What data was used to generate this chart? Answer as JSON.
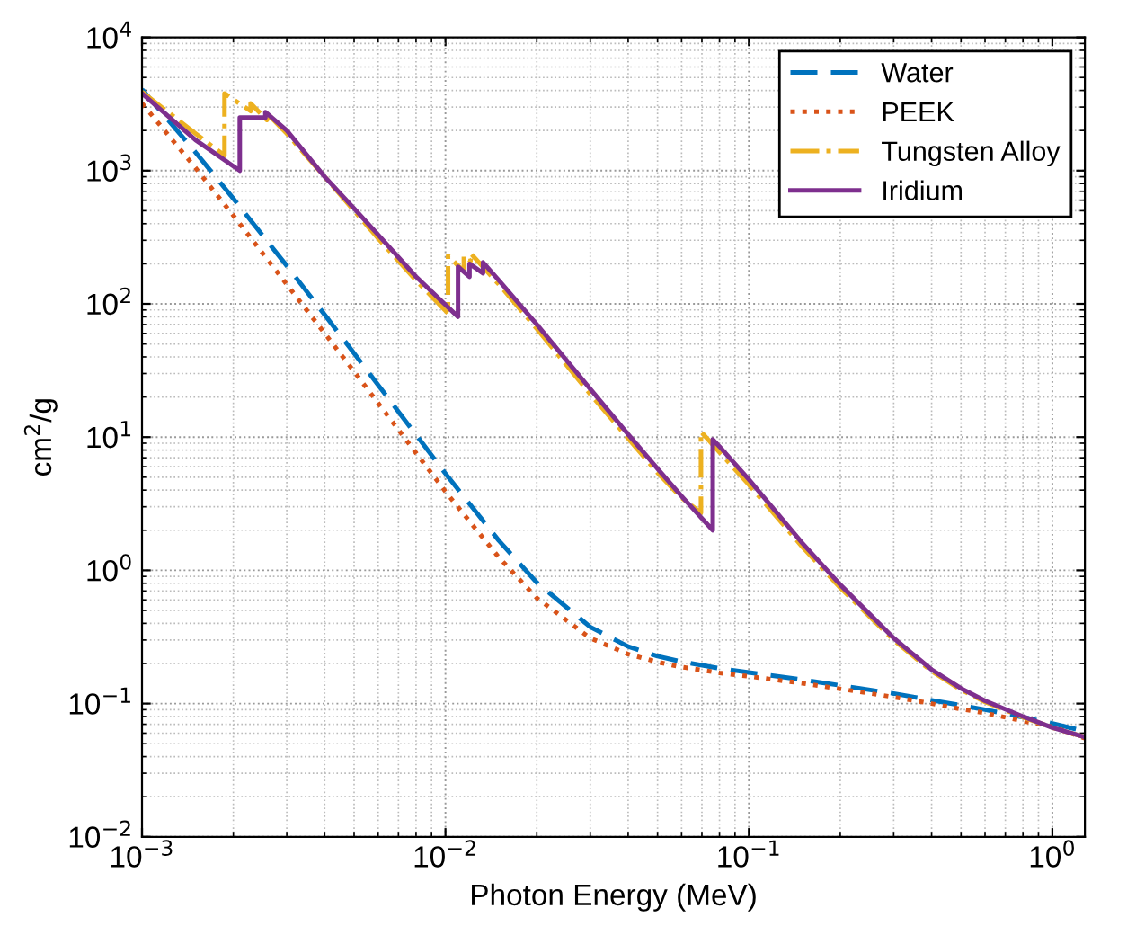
{
  "chart_data": {
    "type": "line",
    "xlabel": "Photon Energy (MeV)",
    "ylabel": "cm$^{2}$/g",
    "log": "xy",
    "grid": true,
    "legend": "top right",
    "xlim": [
      0.001,
      1.28
    ],
    "ylim": [
      0.01,
      10000
    ],
    "xticks": [
      {
        "value": 0.001,
        "label": "10$^{−3}$"
      },
      {
        "value": 0.01,
        "label": "10$^{−2}$"
      },
      {
        "value": 0.1,
        "label": "10$^{−1}$"
      },
      {
        "value": 1,
        "label": "10$^{0}$"
      }
    ],
    "yticks": [
      {
        "value": 0.01,
        "label": "10$^{−2}$"
      },
      {
        "value": 0.1,
        "label": "10$^{−1}$"
      },
      {
        "value": 1,
        "label": "10$^{0}$"
      },
      {
        "value": 10,
        "label": "10$^{1}$"
      },
      {
        "value": 100,
        "label": "10$^{2}$"
      },
      {
        "value": 1000,
        "label": "10$^{3}$"
      },
      {
        "value": 10000,
        "label": "10$^{4}$"
      }
    ],
    "series": [
      {
        "name": "Water",
        "color": "#0072bd",
        "line_style": "dashed",
        "x": [
          0.001,
          0.0015,
          0.002,
          0.003,
          0.004,
          0.005,
          0.006,
          0.008,
          0.01,
          0.015,
          0.02,
          0.03,
          0.04,
          0.05,
          0.06,
          0.08,
          0.1,
          0.15,
          0.2,
          0.3,
          0.4,
          0.5,
          0.6,
          0.8,
          1.0,
          1.28
        ],
        "values": [
          4078,
          1376,
          617,
          193,
          82.8,
          42.6,
          24.6,
          10.4,
          5.33,
          1.67,
          0.81,
          0.376,
          0.268,
          0.227,
          0.206,
          0.184,
          0.171,
          0.151,
          0.137,
          0.119,
          0.106,
          0.097,
          0.09,
          0.079,
          0.071,
          0.062
        ]
      },
      {
        "name": "PEEK",
        "color": "#d95319",
        "line_style": "dotted",
        "x": [
          0.001,
          0.0015,
          0.002,
          0.003,
          0.004,
          0.005,
          0.006,
          0.008,
          0.01,
          0.015,
          0.02,
          0.03,
          0.04,
          0.05,
          0.06,
          0.08,
          0.1,
          0.15,
          0.2,
          0.3,
          0.4,
          0.5,
          0.6,
          0.8,
          1.0,
          1.28
        ],
        "values": [
          3200,
          1050,
          460,
          140,
          60,
          31,
          18,
          7.6,
          3.9,
          1.25,
          0.62,
          0.31,
          0.235,
          0.205,
          0.188,
          0.17,
          0.16,
          0.142,
          0.129,
          0.112,
          0.1,
          0.091,
          0.085,
          0.074,
          0.067,
          0.055
        ]
      },
      {
        "name": "Tungsten Alloy",
        "color": "#edb120",
        "line_style": "dashdot",
        "x": [
          0.001,
          0.0015,
          0.00187,
          0.00187,
          0.00228,
          0.00228,
          0.00258,
          0.00258,
          0.003,
          0.004,
          0.005,
          0.006,
          0.008,
          0.0102,
          0.0102,
          0.0115,
          0.0115,
          0.0121,
          0.0121,
          0.015,
          0.02,
          0.03,
          0.04,
          0.05,
          0.06,
          0.0695,
          0.0695,
          0.08,
          0.1,
          0.15,
          0.2,
          0.3,
          0.4,
          0.5,
          0.6,
          0.8,
          1.0,
          1.28
        ],
        "values": [
          3900,
          1900,
          1300,
          3800,
          2800,
          3200,
          2400,
          2700,
          1900,
          900,
          500,
          310,
          150,
          85,
          230,
          175,
          230,
          210,
          240,
          140,
          65,
          21,
          9.8,
          5.4,
          3.5,
          2.7,
          11,
          7.7,
          4.4,
          1.5,
          0.74,
          0.3,
          0.175,
          0.127,
          0.103,
          0.079,
          0.066,
          0.056
        ]
      },
      {
        "name": "Iridium",
        "color": "#7e2f8e",
        "line_style": "solid",
        "x": [
          0.001,
          0.0015,
          0.0021,
          0.0021,
          0.00255,
          0.00255,
          0.003,
          0.004,
          0.005,
          0.006,
          0.008,
          0.011,
          0.011,
          0.012,
          0.012,
          0.0133,
          0.0133,
          0.015,
          0.02,
          0.03,
          0.04,
          0.05,
          0.06,
          0.076,
          0.076,
          0.08,
          0.1,
          0.15,
          0.2,
          0.3,
          0.4,
          0.5,
          0.6,
          0.8,
          1.0,
          1.28
        ],
        "values": [
          3800,
          1700,
          1000,
          2500,
          2500,
          2750,
          2000,
          900,
          520,
          330,
          160,
          80,
          190,
          160,
          200,
          170,
          205,
          150,
          70,
          23,
          10.5,
          5.8,
          3.6,
          2.0,
          9.6,
          8.5,
          4.8,
          1.6,
          0.78,
          0.31,
          0.18,
          0.13,
          0.105,
          0.08,
          0.066,
          0.056
        ]
      }
    ]
  }
}
